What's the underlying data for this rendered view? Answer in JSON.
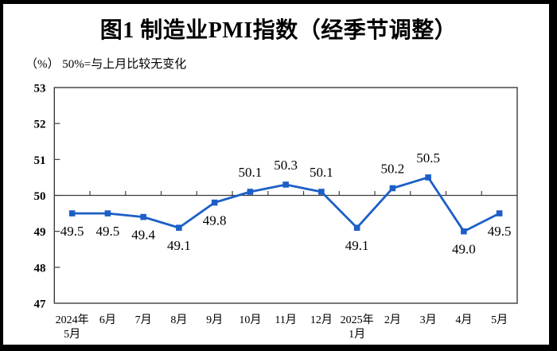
{
  "title": "图1  制造业PMI指数（经季节调整）",
  "subtitle": "（%） 50%=与上月比较无变化",
  "colors": {
    "line": "#1D5FC6",
    "axis": "#3D3D3D",
    "text": "#000000",
    "background": "#FFFFFF",
    "border": "#000000"
  },
  "chart_data": {
    "type": "line",
    "title": "图1  制造业PMI指数（经季节调整）",
    "subtitle": "（%） 50%=与上月比较无变化",
    "series_name": "制造业PMI指数",
    "categories": [
      [
        "2024年",
        "5月"
      ],
      [
        "6月"
      ],
      [
        "7月"
      ],
      [
        "8月"
      ],
      [
        "9月"
      ],
      [
        "10月"
      ],
      [
        "11月"
      ],
      [
        "12月"
      ],
      [
        "2025年",
        "1月"
      ],
      [
        "2月"
      ],
      [
        "3月"
      ],
      [
        "4月"
      ],
      [
        "5月"
      ]
    ],
    "values": [
      49.5,
      49.5,
      49.4,
      49.1,
      49.8,
      50.1,
      50.3,
      50.1,
      49.1,
      50.2,
      50.5,
      49.0,
      49.5
    ],
    "data_labels": [
      "49.5",
      "49.5",
      "49.4",
      "49.1",
      "49.8",
      "50.1",
      "50.3",
      "50.1",
      "49.1",
      "50.2",
      "50.5",
      "49.0",
      "49.5"
    ],
    "ylim": [
      47,
      53
    ],
    "y_ticks": [
      47,
      48,
      49,
      50,
      51,
      52,
      53
    ],
    "reference_line": 50,
    "line_color": "#1D5FC6",
    "axis_color": "#3D3D3D",
    "marker": "square",
    "grid": "off",
    "legend": "none",
    "xlabel": "",
    "ylabel": "(%)"
  }
}
